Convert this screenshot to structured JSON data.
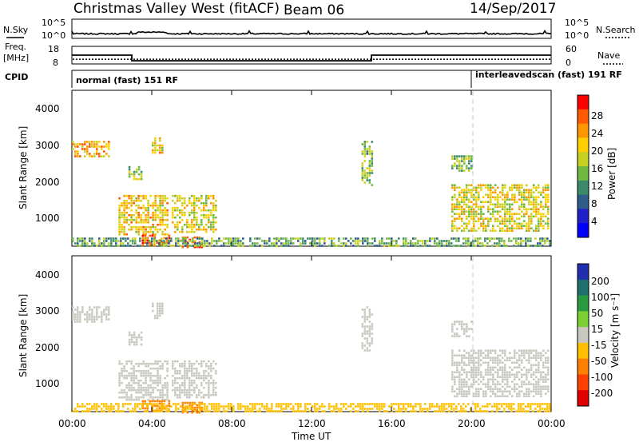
{
  "header": {
    "site": "Christmas Valley West (fitACF)",
    "beam": "Beam 06",
    "date": "14/Sep/2017"
  },
  "top_panels": {
    "nsky_label": "N.Sky",
    "nsearch_label": "N.Search",
    "count_ticks": [
      "10^5",
      "10^0"
    ],
    "freq_label_1": "Freq.",
    "freq_label_2": "[MHz]",
    "freq_ticks": [
      "18",
      "8"
    ],
    "nave_label": "Nave",
    "nave_ticks": [
      "60",
      "0"
    ],
    "cpid_label": "CPID",
    "cpid_mode_1": "normal (fast) 151 RF",
    "cpid_mode_2": "interleavedscan (fast) 191 RF"
  },
  "axes": {
    "ylabel": "Slant Range [km]",
    "xlabel": "Time UT",
    "x_ticks": [
      "00:00",
      "04:00",
      "08:00",
      "12:00",
      "16:00",
      "20:00",
      "00:00"
    ],
    "y_ticks": [
      "4000",
      "3000",
      "2000",
      "1000"
    ]
  },
  "colorbars": {
    "power_label": "Power [dB]",
    "power_ticks": [
      "28",
      "24",
      "20",
      "16",
      "12",
      "8",
      "4"
    ],
    "power_colors": [
      "#ff0000",
      "#ff5a00",
      "#ff9600",
      "#ffd000",
      "#c8d020",
      "#70b840",
      "#3a8a6a",
      "#305c8a",
      "#2020c8",
      "#0000ff"
    ],
    "velocity_label": "Velocity [m s⁻¹]",
    "velocity_ticks": [
      "200",
      "100",
      "50",
      "15",
      "-15",
      "-50",
      "-100",
      "-200"
    ],
    "velocity_colors": [
      "#1f2fb0",
      "#1f6f6f",
      "#2a9a40",
      "#7ad030",
      "#c8c8c0",
      "#ffc000",
      "#ff8000",
      "#ff4000",
      "#e00000"
    ]
  },
  "chart_data": {
    "type": "heatmap",
    "x_range_hours": [
      0,
      24
    ],
    "y_range_km": [
      180,
      4500
    ],
    "cpid_switch_time": "20:00",
    "frequency_mhz": {
      "segments": [
        {
          "start": "00:00",
          "end": "03:00",
          "value": 13
        },
        {
          "start": "03:00",
          "end": "15:00",
          "value": 9.8
        },
        {
          "start": "15:00",
          "end": "24:00",
          "value": 13
        }
      ]
    },
    "nave_level": 16,
    "scatter_regions": [
      {
        "start": "00:00",
        "end": "01:50",
        "range_km": [
          2700,
          3100
        ],
        "power_db": 22,
        "velocity": 0
      },
      {
        "start": "02:50",
        "end": "03:30",
        "range_km": [
          2050,
          2400
        ],
        "power_db": 16,
        "velocity": 0
      },
      {
        "start": "04:00",
        "end": "04:30",
        "range_km": [
          2800,
          3200
        ],
        "power_db": 20,
        "velocity": 0
      },
      {
        "start": "02:20",
        "end": "04:50",
        "range_km": [
          500,
          1600
        ],
        "power_db": 20,
        "velocity": 0
      },
      {
        "start": "05:00",
        "end": "07:10",
        "range_km": [
          600,
          1600
        ],
        "power_db": 18,
        "velocity": 0
      },
      {
        "start": "03:30",
        "end": "04:50",
        "range_km": [
          180,
          500
        ],
        "power_db": 28,
        "velocity": -60
      },
      {
        "start": "05:30",
        "end": "06:30",
        "range_km": [
          180,
          450
        ],
        "power_db": 28,
        "velocity": -60
      },
      {
        "start": "14:30",
        "end": "15:00",
        "range_km": [
          1900,
          3100
        ],
        "power_db": 14,
        "velocity": 0
      },
      {
        "start": "19:00",
        "end": "20:00",
        "range_km": [
          2300,
          2700
        ],
        "power_db": 14,
        "velocity": 0
      },
      {
        "start": "19:00",
        "end": "23:50",
        "range_km": [
          600,
          1900
        ],
        "power_db": 18,
        "velocity": 0
      },
      {
        "start": "00:00",
        "end": "24:00",
        "range_km": [
          180,
          420
        ],
        "power_db": 12,
        "velocity": -40
      }
    ]
  }
}
